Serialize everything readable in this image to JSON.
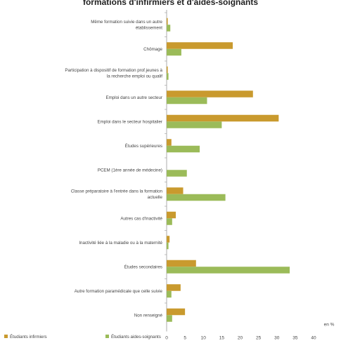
{
  "chart_data": {
    "type": "bar",
    "orientation": "horizontal",
    "title": "formations d'infirmiers et d'aides-soignants",
    "xlabel": "en %",
    "ylabel": "",
    "xlim": [
      0,
      40
    ],
    "xticks": [
      0,
      5,
      10,
      15,
      20,
      25,
      30,
      35,
      40
    ],
    "grid": false,
    "legend_position": "bottom",
    "categories": [
      [
        "Même formation suivie dans un autre",
        "établissement"
      ],
      [
        "Chômage"
      ],
      [
        "Participation à dispositif de formation prof.jeunes à",
        "la recherche emploi ou qualif"
      ],
      [
        "Emploi dans un autre secteur"
      ],
      [
        "Emploi dans le secteur hospitalier"
      ],
      [
        "Études supérieures"
      ],
      [
        "PCEM (1ère année de médecine)"
      ],
      [
        "Classe préparatoire à l'entrée dans la formation",
        "actuelle"
      ],
      [
        "Autres cas d'inactivité"
      ],
      [
        "Inactivité liée à la maladie ou à la maternité"
      ],
      [
        "Études secondaires"
      ],
      [
        "Autre formation paramédicale que celle suivie"
      ],
      [
        "Non renseigné"
      ]
    ],
    "series": [
      {
        "name": "Étudiants infirmiers",
        "color": "#c99a2e",
        "values": [
          0.3,
          18,
          0.3,
          23.5,
          30.5,
          1.3,
          0,
          4.5,
          2.5,
          0.8,
          8,
          3.8,
          5
        ]
      },
      {
        "name": "Étudiants aides-soignants",
        "color": "#9bbb59",
        "values": [
          1.0,
          4,
          0.5,
          11,
          15,
          9,
          5.5,
          16,
          1.5,
          0.5,
          33.5,
          1.3,
          1.5
        ]
      }
    ]
  }
}
